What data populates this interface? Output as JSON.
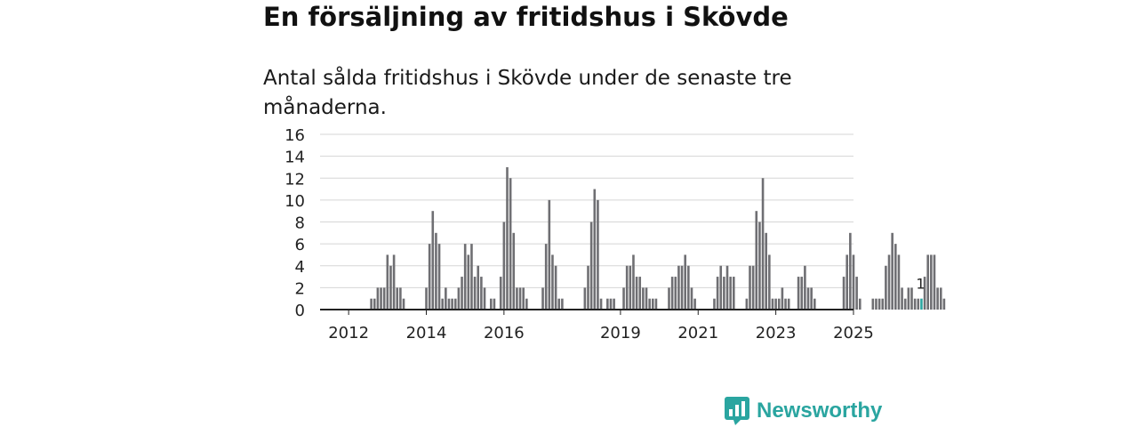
{
  "header": {
    "title": "En försäljning av fritidshus i Skövde",
    "subtitle": "Antal sålda fritidshus i Skövde under de senaste tre månaderna."
  },
  "brand": {
    "name": "Newsworthy",
    "icon": "newsworthy-logo-icon"
  },
  "colors": {
    "bar": "#6f6f73",
    "highlight": "#2aa5a0",
    "grid": "#d5d5d5",
    "axis": "#222222",
    "text": "#222222"
  },
  "chart_data": {
    "type": "bar",
    "title": "En försäljning av fritidshus i Skövde",
    "subtitle": "Antal sålda fritidshus i Skövde under de senaste tre månaderna.",
    "xlabel": "",
    "ylabel": "",
    "ylim": [
      0,
      16
    ],
    "yticks": [
      0,
      2,
      4,
      6,
      8,
      10,
      12,
      14,
      16
    ],
    "grid": true,
    "start_month": "2011-12",
    "xticks": [
      {
        "label": "2012",
        "index": 1
      },
      {
        "label": "2014",
        "index": 25
      },
      {
        "label": "2016",
        "index": 49
      },
      {
        "label": "2019",
        "index": 85
      },
      {
        "label": "2021",
        "index": 109
      },
      {
        "label": "2023",
        "index": 133
      },
      {
        "label": "2025",
        "index": 157
      }
    ],
    "values": [
      0,
      0,
      0,
      0,
      0,
      0,
      0,
      0,
      1,
      1,
      2,
      2,
      2,
      5,
      4,
      5,
      2,
      2,
      1,
      0,
      0,
      0,
      0,
      0,
      0,
      2,
      6,
      9,
      7,
      6,
      1,
      2,
      1,
      1,
      1,
      2,
      3,
      6,
      5,
      6,
      3,
      4,
      3,
      2,
      0,
      1,
      1,
      0,
      3,
      8,
      13,
      12,
      7,
      2,
      2,
      2,
      1,
      0,
      0,
      0,
      0,
      2,
      6,
      10,
      5,
      4,
      1,
      1,
      0,
      0,
      0,
      0,
      0,
      0,
      2,
      4,
      8,
      11,
      10,
      1,
      0,
      1,
      1,
      1,
      0,
      0,
      2,
      4,
      4,
      5,
      3,
      3,
      2,
      2,
      1,
      1,
      1,
      0,
      0,
      0,
      2,
      3,
      3,
      4,
      4,
      5,
      4,
      2,
      1,
      0,
      0,
      0,
      0,
      0,
      1,
      3,
      4,
      3,
      4,
      3,
      3,
      0,
      0,
      0,
      1,
      4,
      4,
      9,
      8,
      12,
      7,
      5,
      1,
      1,
      1,
      2,
      1,
      1,
      0,
      0,
      3,
      3,
      4,
      2,
      2,
      1,
      0,
      0,
      0,
      0,
      0,
      0,
      0,
      0,
      3,
      5,
      7,
      5,
      3,
      1,
      0,
      0,
      0,
      1,
      1,
      1,
      1,
      4,
      5,
      7,
      6,
      5,
      2,
      1,
      2,
      2,
      1,
      1,
      1,
      3,
      5,
      5,
      5,
      2,
      2,
      1
    ],
    "highlight_index": 178,
    "highlight_label": "1"
  }
}
